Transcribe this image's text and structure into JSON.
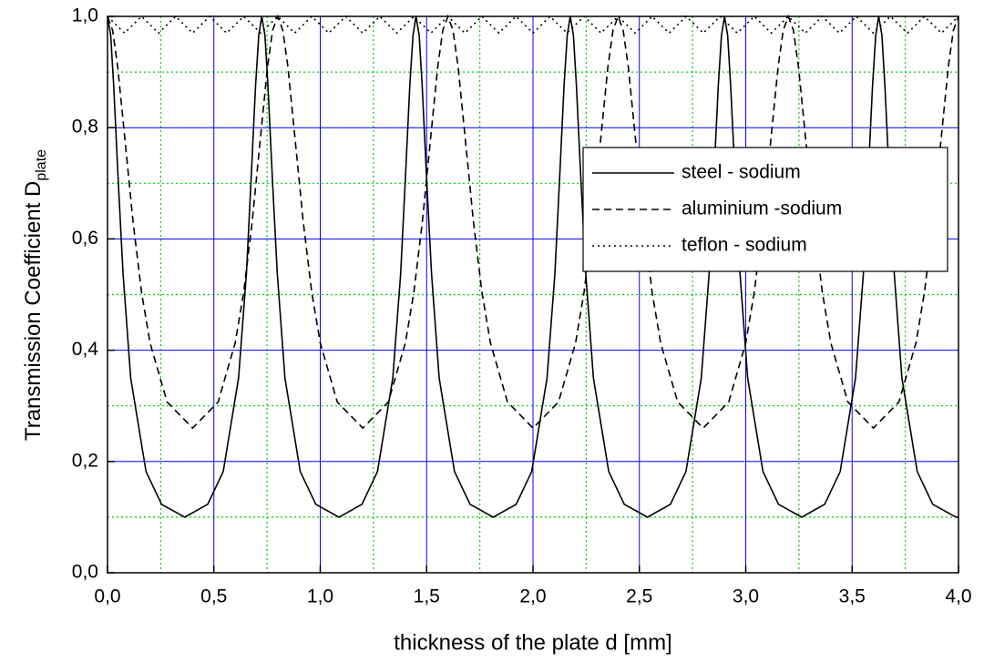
{
  "chart_data": {
    "type": "line",
    "x_label": "thickness of the plate d [mm]",
    "y_label": "Transmission Coefficient D",
    "y_label_subscript": "plate",
    "xlim": [
      0,
      4.0
    ],
    "ylim": [
      0,
      1.0
    ],
    "xticks": [
      {
        "value": 0,
        "label": "0,0"
      },
      {
        "value": 0.5,
        "label": "0,5"
      },
      {
        "value": 1.0,
        "label": "1,0"
      },
      {
        "value": 1.5,
        "label": "1,5"
      },
      {
        "value": 2.0,
        "label": "2,0"
      },
      {
        "value": 2.5,
        "label": "2,5"
      },
      {
        "value": 3.0,
        "label": "3,0"
      },
      {
        "value": 3.5,
        "label": "3,5"
      },
      {
        "value": 4.0,
        "label": "4,0"
      }
    ],
    "yticks": [
      {
        "value": 0,
        "label": "0,0"
      },
      {
        "value": 0.2,
        "label": "0,2"
      },
      {
        "value": 0.4,
        "label": "0,4"
      },
      {
        "value": 0.6,
        "label": "0,6"
      },
      {
        "value": 0.8,
        "label": "0,8"
      },
      {
        "value": 1.0,
        "label": "1,0"
      }
    ],
    "xminor": [
      0.25,
      0.75,
      1.25,
      1.75,
      2.25,
      2.75,
      3.25,
      3.75
    ],
    "yminor": [
      0.1,
      0.3,
      0.5,
      0.7,
      0.9
    ],
    "grid": true,
    "grid_color": "#0000ff",
    "minor_grid_color": "#00cc00",
    "legend": "upper right",
    "series": [
      {
        "name": "steel - sodium",
        "color": "#000000",
        "dash": "solid",
        "x": [
          0,
          0.015,
          0.029,
          0.051,
          0.073,
          0.109,
          0.181,
          0.254,
          0.363,
          0.471,
          0.544,
          0.616,
          0.653,
          0.674,
          0.696,
          0.711,
          0.725,
          0.74,
          0.754,
          0.776,
          0.798,
          0.834,
          0.906,
          0.979,
          1.088,
          1.196,
          1.269,
          1.341,
          1.378,
          1.399,
          1.421,
          1.436,
          1.45,
          1.465,
          1.479,
          1.501,
          1.523,
          1.559,
          1.631,
          1.704,
          1.813,
          1.921,
          1.994,
          2.066,
          2.103,
          2.124,
          2.146,
          2.161,
          2.175,
          2.19,
          2.204,
          2.226,
          2.248,
          2.284,
          2.356,
          2.429,
          2.538,
          2.646,
          2.719,
          2.791,
          2.828,
          2.849,
          2.871,
          2.886,
          2.9,
          2.915,
          2.929,
          2.951,
          2.973,
          3.009,
          3.081,
          3.154,
          3.263,
          3.371,
          3.444,
          3.516,
          3.553,
          3.574,
          3.596,
          3.611,
          3.625,
          3.64,
          3.654,
          3.676,
          3.698,
          3.734,
          3.806,
          3.879,
          3.988,
          4.0
        ],
        "values": [
          1,
          0.966,
          0.876,
          0.7,
          0.538,
          0.35,
          0.182,
          0.123,
          0.1,
          0.123,
          0.182,
          0.35,
          0.538,
          0.7,
          0.876,
          0.966,
          1,
          0.966,
          0.876,
          0.7,
          0.538,
          0.35,
          0.182,
          0.123,
          0.1,
          0.123,
          0.182,
          0.35,
          0.538,
          0.7,
          0.876,
          0.966,
          1,
          0.966,
          0.876,
          0.7,
          0.538,
          0.35,
          0.182,
          0.123,
          0.1,
          0.123,
          0.182,
          0.35,
          0.538,
          0.7,
          0.876,
          0.966,
          1,
          0.966,
          0.876,
          0.7,
          0.538,
          0.35,
          0.182,
          0.123,
          0.1,
          0.123,
          0.182,
          0.35,
          0.538,
          0.7,
          0.876,
          0.966,
          1,
          0.966,
          0.876,
          0.7,
          0.538,
          0.35,
          0.182,
          0.123,
          0.1,
          0.123,
          0.182,
          0.35,
          0.538,
          0.7,
          0.876,
          0.966,
          1,
          0.966,
          0.876,
          0.7,
          0.538,
          0.35,
          0.182,
          0.123,
          0.1,
          0.1
        ]
      },
      {
        "name": "aluminium -sodium",
        "color": "#000000",
        "dash": "dashed",
        "x": [
          0,
          0.024,
          0.048,
          0.08,
          0.12,
          0.16,
          0.2,
          0.28,
          0.4,
          0.52,
          0.6,
          0.64,
          0.68,
          0.72,
          0.752,
          0.776,
          0.8,
          0.824,
          0.848,
          0.88,
          0.92,
          0.96,
          1.0,
          1.08,
          1.2,
          1.32,
          1.4,
          1.44,
          1.48,
          1.52,
          1.552,
          1.576,
          1.6,
          1.624,
          1.648,
          1.68,
          1.72,
          1.76,
          1.8,
          1.88,
          2.0,
          2.12,
          2.2,
          2.24,
          2.28,
          2.32,
          2.352,
          2.376,
          2.4,
          2.424,
          2.448,
          2.48,
          2.52,
          2.56,
          2.6,
          2.68,
          2.8,
          2.92,
          3.0,
          3.04,
          3.08,
          3.12,
          3.152,
          3.176,
          3.2,
          3.224,
          3.248,
          3.28,
          3.32,
          3.36,
          3.4,
          3.48,
          3.6,
          3.72,
          3.8,
          3.84,
          3.88,
          3.92,
          3.952,
          3.976,
          4.0
        ],
        "values": [
          1,
          0.975,
          0.909,
          0.786,
          0.631,
          0.504,
          0.413,
          0.307,
          0.26,
          0.307,
          0.413,
          0.504,
          0.631,
          0.786,
          0.909,
          0.975,
          1,
          0.975,
          0.909,
          0.786,
          0.631,
          0.504,
          0.413,
          0.307,
          0.26,
          0.307,
          0.413,
          0.504,
          0.631,
          0.786,
          0.909,
          0.975,
          1,
          0.975,
          0.909,
          0.786,
          0.631,
          0.504,
          0.413,
          0.307,
          0.26,
          0.307,
          0.413,
          0.504,
          0.631,
          0.786,
          0.909,
          0.975,
          1,
          0.975,
          0.909,
          0.786,
          0.631,
          0.504,
          0.413,
          0.307,
          0.26,
          0.307,
          0.413,
          0.504,
          0.631,
          0.786,
          0.909,
          0.975,
          1,
          0.975,
          0.909,
          0.786,
          0.631,
          0.504,
          0.413,
          0.307,
          0.26,
          0.307,
          0.413,
          0.504,
          0.631,
          0.786,
          0.909,
          0.975,
          1
        ]
      },
      {
        "name": "teflon - sodium",
        "color": "#000000",
        "dash": "dotted",
        "x": [
          0,
          0.04,
          0.08,
          0.12,
          0.16,
          0.2,
          0.24,
          0.28,
          0.32,
          0.36,
          0.4,
          0.44,
          0.48,
          0.52,
          0.56,
          0.6,
          0.64,
          0.68,
          0.72,
          0.76,
          0.8,
          0.84,
          0.88,
          0.92,
          0.96,
          1.0,
          1.04,
          1.08,
          1.12,
          1.16,
          1.2,
          1.24,
          1.28,
          1.32,
          1.36,
          1.4,
          1.44,
          1.48,
          1.52,
          1.56,
          1.6,
          1.64,
          1.68,
          1.72,
          1.76,
          1.8,
          1.84,
          1.88,
          1.92,
          1.96,
          2.0,
          2.04,
          2.08,
          2.12,
          2.16,
          2.2,
          2.24,
          2.28,
          2.32,
          2.36,
          2.4,
          2.44,
          2.48,
          2.52,
          2.56,
          2.6,
          2.64,
          2.68,
          2.72,
          2.76,
          2.8,
          2.84,
          2.88,
          2.92,
          2.96,
          3.0,
          3.04,
          3.08,
          3.12,
          3.16,
          3.2,
          3.24,
          3.28,
          3.32,
          3.36,
          3.4,
          3.44,
          3.48,
          3.52,
          3.56,
          3.6,
          3.64,
          3.68,
          3.72,
          3.76,
          3.8,
          3.84,
          3.88,
          3.92,
          3.96,
          4.0
        ],
        "values": [
          1,
          0.985,
          0.97,
          0.985,
          1,
          0.985,
          0.97,
          0.985,
          1,
          0.985,
          0.97,
          0.985,
          1,
          0.985,
          0.97,
          0.985,
          1,
          0.985,
          0.97,
          0.985,
          1,
          0.985,
          0.97,
          0.985,
          1,
          0.985,
          0.97,
          0.985,
          1,
          0.985,
          0.97,
          0.985,
          1,
          0.985,
          0.97,
          0.985,
          1,
          0.985,
          0.97,
          0.985,
          1,
          0.985,
          0.97,
          0.985,
          1,
          0.985,
          0.97,
          0.985,
          1,
          0.985,
          0.97,
          0.985,
          1,
          0.985,
          0.97,
          0.985,
          1,
          0.985,
          0.97,
          0.985,
          1,
          0.985,
          0.97,
          0.985,
          1,
          0.985,
          0.97,
          0.985,
          1,
          0.985,
          0.97,
          0.985,
          1,
          0.985,
          0.97,
          0.985,
          1,
          0.985,
          0.97,
          0.985,
          1,
          0.985,
          0.97,
          0.985,
          1,
          0.985,
          0.97,
          0.985,
          1,
          0.985,
          0.97,
          0.985,
          1,
          0.985,
          0.97,
          0.985,
          1,
          0.985,
          0.97,
          0.985,
          1
        ]
      }
    ]
  }
}
